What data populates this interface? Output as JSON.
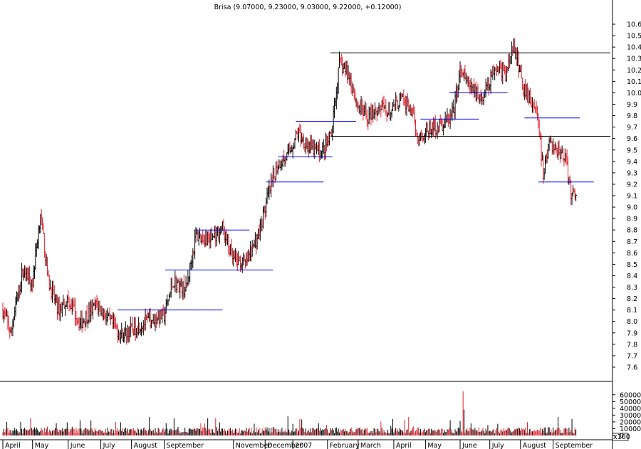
{
  "title": "Brisa (9.07000, 9.23000, 9.03000, 9.22000, +0.12000)",
  "colors": {
    "up": "#000000",
    "down": "#e8202a",
    "trend": "#0000ff",
    "level": "#000000",
    "axis": "#000000"
  },
  "chart_data": {
    "type": "ohlc",
    "title": "Brisa (9.07000, 9.23000, 9.03000, 9.22000, +0.12000)",
    "price_axis": {
      "ticks": [
        "7.6",
        "7.7",
        "7.8",
        "7.9",
        "8.0",
        "8.1",
        "8.2",
        "8.3",
        "8.4",
        "8.5",
        "8.6",
        "8.7",
        "8.8",
        "8.9",
        "9.0",
        "9.1",
        "9.2",
        "9.3",
        "9.4",
        "9.5",
        "9.6",
        "9.7",
        "9.8",
        "9.9",
        "10.0",
        "10.1",
        "10.2",
        "10.3",
        "10.4",
        "10.5",
        "10.6"
      ],
      "range": [
        7.52,
        10.7
      ]
    },
    "volume_axis": {
      "ticks": [
        "0",
        "10000",
        "20000",
        "30000",
        "40000",
        "50000",
        "60000"
      ],
      "range": [
        0,
        70000
      ],
      "multiplier_label": "x100"
    },
    "months": [
      "April",
      "May",
      "June",
      "July",
      "August",
      "September",
      "November",
      "December",
      "2007",
      "February",
      "March",
      "April",
      "May",
      "June",
      "July",
      "August",
      "September"
    ],
    "month_bar_index": [
      0,
      30,
      66,
      99,
      130,
      163,
      233,
      265,
      293,
      328,
      359,
      395,
      427,
      462,
      492,
      523,
      556
    ],
    "bar_count": 580,
    "key_points": [
      [
        0,
        8.1
      ],
      [
        8,
        7.9
      ],
      [
        20,
        8.45
      ],
      [
        30,
        8.35
      ],
      [
        38,
        8.95
      ],
      [
        46,
        8.35
      ],
      [
        56,
        8.1
      ],
      [
        66,
        8.2
      ],
      [
        78,
        7.98
      ],
      [
        95,
        8.15
      ],
      [
        110,
        7.98
      ],
      [
        120,
        7.88
      ],
      [
        135,
        7.95
      ],
      [
        150,
        8.02
      ],
      [
        163,
        8.05
      ],
      [
        172,
        8.35
      ],
      [
        185,
        8.28
      ],
      [
        195,
        8.75
      ],
      [
        210,
        8.72
      ],
      [
        222,
        8.82
      ],
      [
        232,
        8.55
      ],
      [
        245,
        8.5
      ],
      [
        258,
        8.75
      ],
      [
        268,
        9.1
      ],
      [
        278,
        9.38
      ],
      [
        288,
        9.45
      ],
      [
        298,
        9.65
      ],
      [
        310,
        9.52
      ],
      [
        322,
        9.48
      ],
      [
        332,
        9.62
      ],
      [
        340,
        10.25
      ],
      [
        350,
        10.15
      ],
      [
        358,
        9.9
      ],
      [
        368,
        9.78
      ],
      [
        380,
        9.88
      ],
      [
        392,
        9.82
      ],
      [
        402,
        9.95
      ],
      [
        412,
        9.85
      ],
      [
        420,
        9.62
      ],
      [
        432,
        9.68
      ],
      [
        445,
        9.72
      ],
      [
        455,
        9.82
      ],
      [
        462,
        10.18
      ],
      [
        472,
        10.05
      ],
      [
        485,
        9.95
      ],
      [
        498,
        10.25
      ],
      [
        508,
        10.15
      ],
      [
        515,
        10.4
      ],
      [
        520,
        10.28
      ],
      [
        526,
        10.05
      ],
      [
        533,
        9.95
      ],
      [
        540,
        9.82
      ],
      [
        546,
        9.28
      ],
      [
        552,
        9.55
      ],
      [
        560,
        9.5
      ],
      [
        568,
        9.45
      ],
      [
        574,
        9.1
      ],
      [
        579,
        9.15
      ]
    ],
    "volume_spike": {
      "bar": 465,
      "value": 65000
    },
    "horizontal_levels": [
      {
        "from_bar": 331,
        "to_bar": 615,
        "price": 10.35
      },
      {
        "from_bar": 331,
        "to_bar": 615,
        "price": 9.62
      }
    ],
    "trend_segments": [
      {
        "from_bar": 116,
        "to_bar": 222,
        "price": 8.1
      },
      {
        "from_bar": 164,
        "to_bar": 273,
        "price": 8.45
      },
      {
        "from_bar": 195,
        "to_bar": 249,
        "price": 8.8
      },
      {
        "from_bar": 266,
        "to_bar": 324,
        "price": 9.22
      },
      {
        "from_bar": 278,
        "to_bar": 333,
        "price": 9.44
      },
      {
        "from_bar": 296,
        "to_bar": 357,
        "price": 9.75
      },
      {
        "from_bar": 422,
        "to_bar": 481,
        "price": 9.77
      },
      {
        "from_bar": 451,
        "to_bar": 510,
        "price": 10.0
      },
      {
        "from_bar": 527,
        "to_bar": 583,
        "price": 9.78
      },
      {
        "from_bar": 541,
        "to_bar": 597,
        "price": 9.22
      }
    ],
    "last_bar": {
      "open": 9.07,
      "high": 9.23,
      "low": 9.03,
      "close": 9.22,
      "change": 0.12
    }
  }
}
